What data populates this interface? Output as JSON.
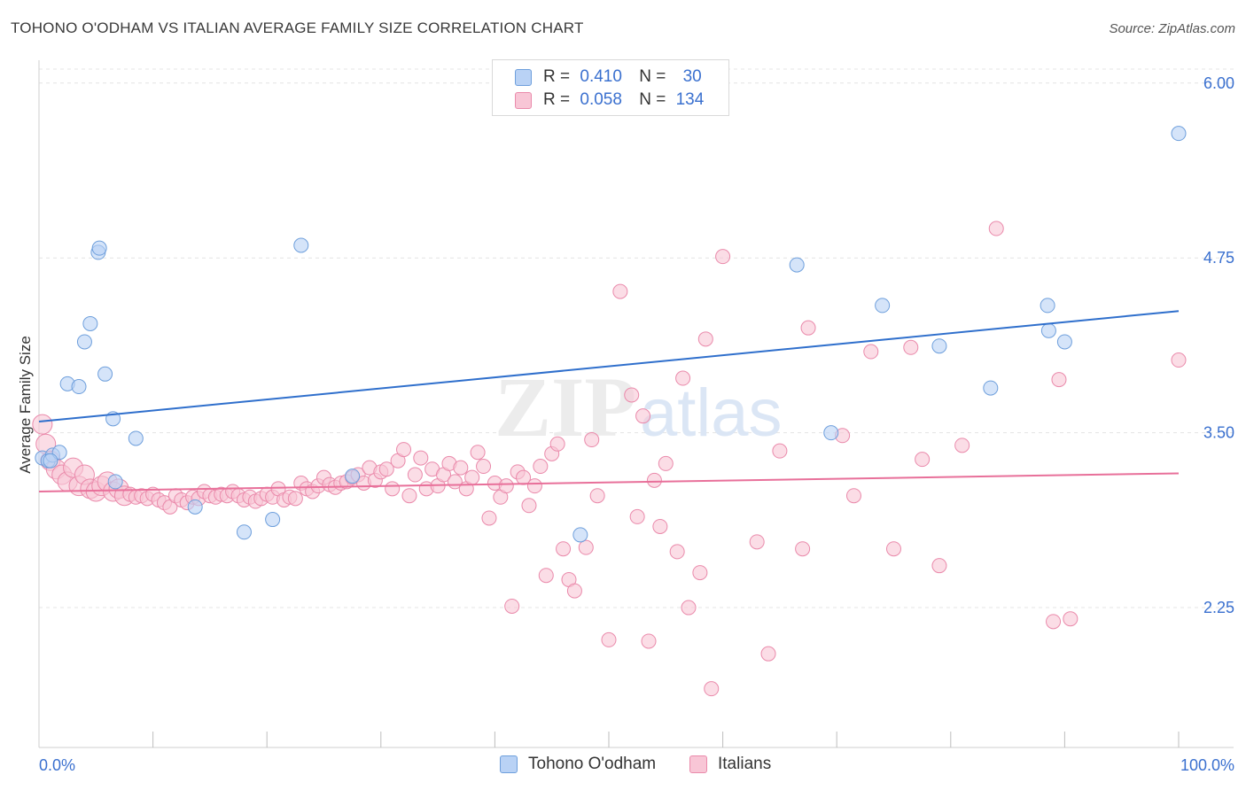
{
  "title": "TOHONO O'ODHAM VS ITALIAN AVERAGE FAMILY SIZE CORRELATION CHART",
  "source": "Source: ZipAtlas.com",
  "watermark": {
    "zip": "ZIP",
    "atlas": "atlas"
  },
  "legend_top": [
    {
      "r_label": "R =",
      "r_value": "0.410",
      "n_label": "N =",
      "n_value": "30"
    },
    {
      "r_label": "R =",
      "r_value": "0.058",
      "n_label": "N =",
      "n_value": "134"
    }
  ],
  "legend_bottom": [
    {
      "label": "Tohono O'odham"
    },
    {
      "label": "Italians"
    }
  ],
  "colors": {
    "blue_fill": "#b9d2f5",
    "blue_stroke": "#6e9fdc",
    "blue_line": "#2f6fcc",
    "pink_fill": "#f8c6d6",
    "pink_stroke": "#ea8aab",
    "pink_line": "#e8709a",
    "axis_text": "#3a70cf",
    "grid": "#e4e4e4"
  },
  "chart_data": {
    "type": "scatter",
    "title": "TOHONO O'ODHAM VS ITALIAN AVERAGE FAMILY SIZE CORRELATION CHART",
    "xlabel": "",
    "ylabel": "Average Family Size",
    "xlim": [
      0,
      100
    ],
    "ylim": [
      1.25,
      6.1
    ],
    "x_tick_labels": [
      "0.0%",
      "100.0%"
    ],
    "y_ticks": [
      6.0,
      4.75,
      3.5,
      2.25
    ],
    "y_tick_labels": [
      "6.00",
      "4.75",
      "3.50",
      "2.25"
    ],
    "series": [
      {
        "name": "Tohono O'odham",
        "color": "#6e9fdc",
        "points": [
          [
            0.3,
            3.32
          ],
          [
            0.8,
            3.3
          ],
          [
            1.2,
            3.34
          ],
          [
            1.8,
            3.36
          ],
          [
            2.5,
            3.85
          ],
          [
            3.5,
            3.83
          ],
          [
            4.0,
            4.15
          ],
          [
            4.5,
            4.28
          ],
          [
            5.2,
            4.79
          ],
          [
            5.3,
            4.82
          ],
          [
            5.8,
            3.92
          ],
          [
            6.5,
            3.6
          ],
          [
            6.7,
            3.15
          ],
          [
            8.5,
            3.46
          ],
          [
            13.7,
            2.97
          ],
          [
            18.0,
            2.79
          ],
          [
            20.5,
            2.88
          ],
          [
            23.0,
            4.84
          ],
          [
            27.5,
            3.19
          ],
          [
            47.5,
            2.77
          ],
          [
            66.5,
            4.7
          ],
          [
            69.5,
            3.5
          ],
          [
            74.0,
            4.41
          ],
          [
            79.0,
            4.12
          ],
          [
            83.5,
            3.82
          ],
          [
            88.5,
            4.41
          ],
          [
            88.6,
            4.23
          ],
          [
            90.0,
            4.15
          ],
          [
            100.0,
            5.64
          ],
          [
            1.0,
            3.3
          ]
        ],
        "trend": {
          "x0": 0,
          "y0": 3.58,
          "x1": 100,
          "y1": 4.37
        }
      },
      {
        "name": "Italians",
        "color": "#ea8aab",
        "points": [
          [
            0.3,
            3.56
          ],
          [
            0.6,
            3.42
          ],
          [
            1.0,
            3.3
          ],
          [
            1.5,
            3.24
          ],
          [
            2.0,
            3.2
          ],
          [
            2.5,
            3.15
          ],
          [
            3.0,
            3.25
          ],
          [
            3.5,
            3.12
          ],
          [
            4.0,
            3.2
          ],
          [
            4.5,
            3.1
          ],
          [
            5.0,
            3.08
          ],
          [
            5.5,
            3.12
          ],
          [
            6.0,
            3.15
          ],
          [
            6.5,
            3.08
          ],
          [
            7.0,
            3.1
          ],
          [
            7.5,
            3.05
          ],
          [
            8.0,
            3.06
          ],
          [
            8.5,
            3.04
          ],
          [
            9.0,
            3.05
          ],
          [
            9.5,
            3.03
          ],
          [
            10.0,
            3.06
          ],
          [
            10.5,
            3.02
          ],
          [
            11.0,
            3.0
          ],
          [
            11.5,
            2.97
          ],
          [
            12.0,
            3.05
          ],
          [
            12.5,
            3.02
          ],
          [
            13.0,
            3.0
          ],
          [
            13.5,
            3.04
          ],
          [
            14.0,
            3.03
          ],
          [
            14.5,
            3.08
          ],
          [
            15.0,
            3.05
          ],
          [
            15.5,
            3.04
          ],
          [
            16.0,
            3.06
          ],
          [
            16.5,
            3.05
          ],
          [
            17.0,
            3.08
          ],
          [
            17.5,
            3.05
          ],
          [
            18.0,
            3.02
          ],
          [
            18.5,
            3.04
          ],
          [
            19.0,
            3.01
          ],
          [
            19.5,
            3.03
          ],
          [
            20.0,
            3.06
          ],
          [
            20.5,
            3.04
          ],
          [
            21.0,
            3.1
          ],
          [
            21.5,
            3.02
          ],
          [
            22.0,
            3.04
          ],
          [
            22.5,
            3.03
          ],
          [
            23.0,
            3.14
          ],
          [
            23.5,
            3.1
          ],
          [
            24.0,
            3.08
          ],
          [
            24.5,
            3.12
          ],
          [
            25.0,
            3.18
          ],
          [
            25.5,
            3.13
          ],
          [
            26.0,
            3.11
          ],
          [
            26.5,
            3.14
          ],
          [
            27.0,
            3.15
          ],
          [
            27.5,
            3.18
          ],
          [
            28.0,
            3.2
          ],
          [
            28.5,
            3.14
          ],
          [
            29.0,
            3.25
          ],
          [
            29.5,
            3.16
          ],
          [
            30.0,
            3.22
          ],
          [
            30.5,
            3.24
          ],
          [
            31.0,
            3.1
          ],
          [
            31.5,
            3.3
          ],
          [
            32.0,
            3.38
          ],
          [
            32.5,
            3.05
          ],
          [
            33.0,
            3.2
          ],
          [
            33.5,
            3.32
          ],
          [
            34.0,
            3.1
          ],
          [
            34.5,
            3.24
          ],
          [
            35.0,
            3.12
          ],
          [
            35.5,
            3.2
          ],
          [
            36.0,
            3.28
          ],
          [
            36.5,
            3.15
          ],
          [
            37.0,
            3.25
          ],
          [
            37.5,
            3.1
          ],
          [
            38.0,
            3.18
          ],
          [
            38.5,
            3.36
          ],
          [
            39.0,
            3.26
          ],
          [
            39.5,
            2.89
          ],
          [
            40.0,
            3.14
          ],
          [
            40.5,
            3.04
          ],
          [
            41.0,
            3.12
          ],
          [
            41.5,
            2.26
          ],
          [
            42.0,
            3.22
          ],
          [
            42.5,
            3.18
          ],
          [
            43.0,
            2.98
          ],
          [
            43.5,
            3.12
          ],
          [
            44.0,
            3.26
          ],
          [
            44.5,
            2.48
          ],
          [
            45.0,
            3.35
          ],
          [
            45.5,
            3.42
          ],
          [
            46.0,
            2.67
          ],
          [
            46.5,
            2.45
          ],
          [
            47.0,
            2.37
          ],
          [
            48.0,
            2.68
          ],
          [
            48.5,
            3.45
          ],
          [
            49.0,
            3.05
          ],
          [
            50.0,
            2.02
          ],
          [
            51.0,
            4.51
          ],
          [
            52.0,
            3.77
          ],
          [
            52.5,
            2.9
          ],
          [
            53.0,
            3.62
          ],
          [
            53.5,
            2.01
          ],
          [
            54.0,
            3.16
          ],
          [
            54.5,
            2.83
          ],
          [
            55.0,
            3.28
          ],
          [
            56.0,
            2.65
          ],
          [
            56.5,
            3.89
          ],
          [
            57.0,
            2.25
          ],
          [
            58.0,
            2.5
          ],
          [
            58.5,
            4.17
          ],
          [
            59.0,
            1.67
          ],
          [
            60.0,
            4.76
          ],
          [
            63.0,
            2.72
          ],
          [
            64.0,
            1.92
          ],
          [
            65.0,
            3.37
          ],
          [
            67.0,
            2.67
          ],
          [
            67.5,
            4.25
          ],
          [
            70.5,
            3.48
          ],
          [
            71.5,
            3.05
          ],
          [
            73.0,
            4.08
          ],
          [
            75.0,
            2.67
          ],
          [
            76.5,
            4.11
          ],
          [
            77.5,
            3.31
          ],
          [
            79.0,
            2.55
          ],
          [
            81.0,
            3.41
          ],
          [
            84.0,
            4.96
          ],
          [
            89.0,
            2.15
          ],
          [
            89.5,
            3.88
          ],
          [
            90.5,
            2.17
          ],
          [
            100.0,
            4.02
          ]
        ],
        "trend": {
          "x0": 0,
          "y0": 3.08,
          "x1": 100,
          "y1": 3.21
        }
      }
    ]
  }
}
